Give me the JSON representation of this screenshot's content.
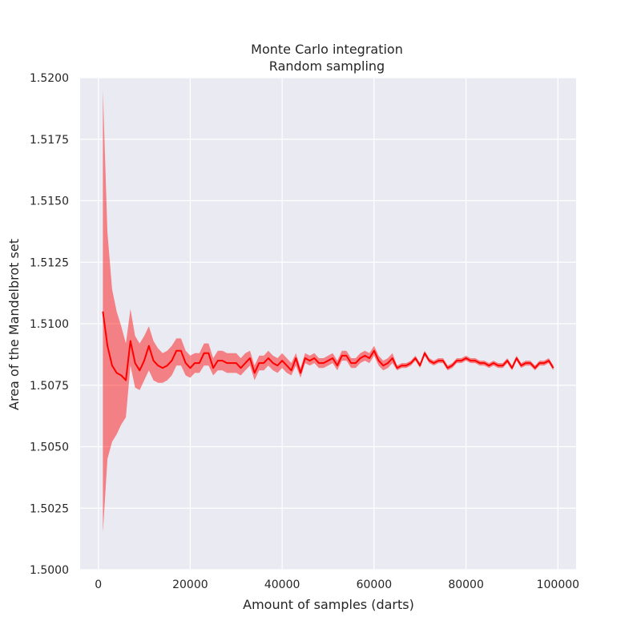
{
  "chart_data": {
    "type": "line",
    "title": "Monte Carlo integration",
    "subtitle": "Random sampling",
    "xlabel": "Amount of samples (darts)",
    "ylabel": "Area of the Mandelbrot set",
    "xlim": [
      -3950,
      103950
    ],
    "ylim": [
      1.5,
      1.52
    ],
    "xticks": [
      0,
      20000,
      40000,
      60000,
      80000,
      100000
    ],
    "yticks": [
      1.5,
      1.5025,
      1.505,
      1.5075,
      1.51,
      1.5125,
      1.515,
      1.5175,
      1.52
    ],
    "ytick_labels": [
      "1.5000",
      "1.5025",
      "1.5050",
      "1.5075",
      "1.5100",
      "1.5125",
      "1.5150",
      "1.5175",
      "1.5200"
    ],
    "grid": true,
    "colors": {
      "line": "#ff0000",
      "band": "#ff0000",
      "background": "#eaeaf2",
      "grid": "#ffffff"
    },
    "series": [
      {
        "x": [
          1000,
          2000,
          3000,
          4000,
          5000,
          6000,
          7000,
          8000,
          9000,
          10000,
          11000,
          12000,
          13000,
          14000,
          15000,
          16000,
          17000,
          18000,
          19000,
          20000,
          21000,
          22000,
          23000,
          24000,
          25000,
          26000,
          27000,
          28000,
          29000,
          30000,
          31000,
          32000,
          33000,
          34000,
          35000,
          36000,
          37000,
          38000,
          39000,
          40000,
          41000,
          42000,
          43000,
          44000,
          45000,
          46000,
          47000,
          48000,
          49000,
          50000,
          51000,
          52000,
          53000,
          54000,
          55000,
          56000,
          57000,
          58000,
          59000,
          60000,
          61000,
          62000,
          63000,
          64000,
          65000,
          66000,
          67000,
          68000,
          69000,
          70000,
          71000,
          72000,
          73000,
          74000,
          75000,
          76000,
          77000,
          78000,
          79000,
          80000,
          81000,
          82000,
          83000,
          84000,
          85000,
          86000,
          87000,
          88000,
          89000,
          90000,
          91000,
          92000,
          93000,
          94000,
          95000,
          96000,
          97000,
          98000,
          99000
        ],
        "values": [
          1.5105,
          1.5091,
          1.5083,
          1.508,
          1.5079,
          1.5077,
          1.5093,
          1.5084,
          1.5081,
          1.5085,
          1.5091,
          1.5085,
          1.5083,
          1.5082,
          1.5083,
          1.5085,
          1.5089,
          1.5089,
          1.5084,
          1.5082,
          1.5084,
          1.5084,
          1.5088,
          1.5088,
          1.5082,
          1.5085,
          1.5085,
          1.5084,
          1.5084,
          1.5084,
          1.5082,
          1.5084,
          1.5086,
          1.508,
          1.5084,
          1.5084,
          1.5086,
          1.5084,
          1.5083,
          1.5085,
          1.5083,
          1.5081,
          1.5086,
          1.508,
          1.5086,
          1.5085,
          1.5086,
          1.5084,
          1.5084,
          1.5085,
          1.5086,
          1.5083,
          1.5087,
          1.5087,
          1.5084,
          1.5084,
          1.5086,
          1.5087,
          1.5086,
          1.5089,
          1.5085,
          1.5083,
          1.5084,
          1.5086,
          1.5082,
          1.5083,
          1.5083,
          1.5084,
          1.5086,
          1.5083,
          1.5088,
          1.5085,
          1.5084,
          1.5085,
          1.5085,
          1.5082,
          1.5083,
          1.5085,
          1.5085,
          1.5086,
          1.5085,
          1.5085,
          1.5084,
          1.5084,
          1.5083,
          1.5084,
          1.5083,
          1.5083,
          1.5085,
          1.5082,
          1.5086,
          1.5083,
          1.5084,
          1.5084,
          1.5082,
          1.5084,
          1.5084,
          1.5085,
          1.5082
        ],
        "lower": [
          1.5015,
          1.5045,
          1.5052,
          1.5055,
          1.5059,
          1.5062,
          1.5083,
          1.5074,
          1.5073,
          1.5077,
          1.5081,
          1.5077,
          1.5076,
          1.5076,
          1.5077,
          1.5079,
          1.5083,
          1.5083,
          1.5079,
          1.5078,
          1.508,
          1.508,
          1.5083,
          1.5083,
          1.5079,
          1.5081,
          1.5081,
          1.508,
          1.508,
          1.508,
          1.5079,
          1.5081,
          1.5083,
          1.5077,
          1.5081,
          1.5081,
          1.5083,
          1.5081,
          1.508,
          1.5082,
          1.508,
          1.5079,
          1.5083,
          1.5078,
          1.5084,
          1.5083,
          1.5084,
          1.5082,
          1.5082,
          1.5083,
          1.5084,
          1.5081,
          1.5085,
          1.5085,
          1.5082,
          1.5082,
          1.5084,
          1.5085,
          1.5084,
          1.5087,
          1.5083,
          1.5081,
          1.5082,
          1.5084,
          1.5081,
          1.5082,
          1.5082,
          1.5083,
          1.5085,
          1.5082,
          1.5087,
          1.5084,
          1.5083,
          1.5084,
          1.5084,
          1.5081,
          1.5082,
          1.5084,
          1.5084,
          1.5085,
          1.5084,
          1.5084,
          1.5083,
          1.5083,
          1.5082,
          1.5083,
          1.5082,
          1.5082,
          1.5084,
          1.5081,
          1.5085,
          1.5082,
          1.5083,
          1.5083,
          1.5081,
          1.5083,
          1.5083,
          1.5084,
          1.5081
        ],
        "upper": [
          1.5195,
          1.5137,
          1.5114,
          1.5105,
          1.5099,
          1.5092,
          1.5106,
          1.5095,
          1.5092,
          1.5095,
          1.5099,
          1.5093,
          1.509,
          1.5088,
          1.5089,
          1.5091,
          1.5094,
          1.5094,
          1.5089,
          1.5087,
          1.5088,
          1.5088,
          1.5092,
          1.5092,
          1.5086,
          1.5089,
          1.5089,
          1.5088,
          1.5088,
          1.5088,
          1.5086,
          1.5088,
          1.5089,
          1.5083,
          1.5087,
          1.5087,
          1.5089,
          1.5087,
          1.5086,
          1.5088,
          1.5086,
          1.5084,
          1.5088,
          1.5082,
          1.5088,
          1.5087,
          1.5088,
          1.5086,
          1.5086,
          1.5087,
          1.5088,
          1.5085,
          1.5089,
          1.5089,
          1.5086,
          1.5086,
          1.5088,
          1.5089,
          1.5088,
          1.5091,
          1.5087,
          1.5085,
          1.5086,
          1.5088,
          1.5083,
          1.5084,
          1.5084,
          1.5085,
          1.5087,
          1.5084,
          1.5089,
          1.5086,
          1.5085,
          1.5086,
          1.5086,
          1.5083,
          1.5084,
          1.5086,
          1.5086,
          1.5087,
          1.5086,
          1.5086,
          1.5085,
          1.5085,
          1.5084,
          1.5085,
          1.5084,
          1.5084,
          1.5086,
          1.5083,
          1.5087,
          1.5084,
          1.5085,
          1.5085,
          1.5083,
          1.5085,
          1.5085,
          1.5086,
          1.5083
        ]
      }
    ]
  }
}
